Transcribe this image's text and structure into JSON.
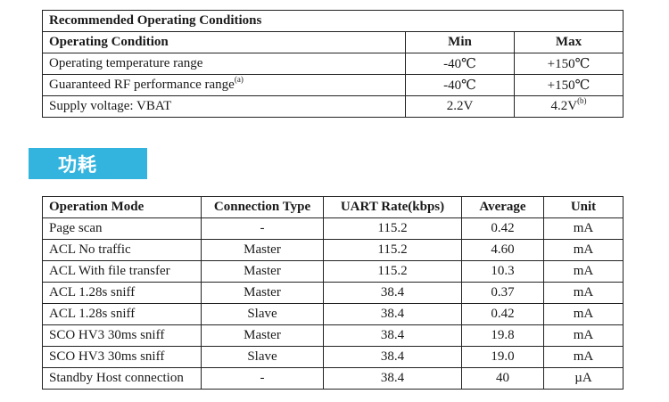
{
  "conditions": {
    "title": "Recommended Operating Conditions",
    "headers": {
      "condition": "Operating Condition",
      "min": "Min",
      "max": "Max"
    },
    "rows": [
      {
        "condition": "Operating temperature range",
        "note": "",
        "min": "-40℃",
        "max": "+150℃",
        "max_note": ""
      },
      {
        "condition": "Guaranteed RF performance range",
        "note": "(a)",
        "min": "-40℃",
        "max": "+150℃",
        "max_note": ""
      },
      {
        "condition": "Supply voltage: VBAT",
        "note": "",
        "min": "2.2V",
        "max": "4.2V",
        "max_note": "(b)"
      }
    ]
  },
  "section": {
    "title": "功耗",
    "color": "#33b4df"
  },
  "power": {
    "headers": {
      "mode": "Operation Mode",
      "connection": "Connection Type",
      "uart": "UART Rate(kbps)",
      "average": "Average",
      "unit": "Unit"
    },
    "rows": [
      {
        "mode": "Page scan",
        "connection": "-",
        "uart": "115.2",
        "average": "0.42",
        "unit": "mA"
      },
      {
        "mode": "ACL No traffic",
        "connection": "Master",
        "uart": "115.2",
        "average": "4.60",
        "unit": "mA"
      },
      {
        "mode": "ACL With file transfer",
        "connection": "Master",
        "uart": "115.2",
        "average": "10.3",
        "unit": "mA"
      },
      {
        "mode": "ACL 1.28s sniff",
        "connection": "Master",
        "uart": "38.4",
        "average": "0.37",
        "unit": "mA"
      },
      {
        "mode": "ACL 1.28s sniff",
        "connection": "Slave",
        "uart": "38.4",
        "average": "0.42",
        "unit": "mA"
      },
      {
        "mode": "SCO HV3 30ms sniff",
        "connection": "Master",
        "uart": "38.4",
        "average": "19.8",
        "unit": "mA"
      },
      {
        "mode": "SCO HV3 30ms sniff",
        "connection": "Slave",
        "uart": "38.4",
        "average": "19.0",
        "unit": "mA"
      },
      {
        "mode": "Standby Host connection",
        "connection": "-",
        "uart": "38.4",
        "average": "40",
        "unit": "µA"
      }
    ]
  }
}
